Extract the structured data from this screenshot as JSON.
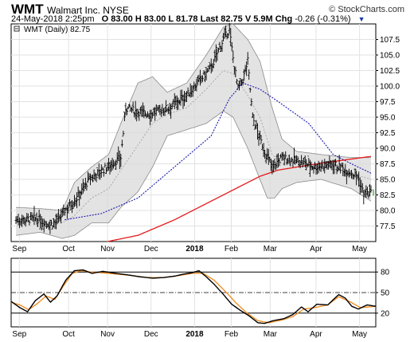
{
  "header": {
    "symbol": "WMT",
    "company": "Walmart Inc.",
    "exchange": "NYSE",
    "copyright": "© StockCharts.com",
    "date": "24-May-2018 2:25pm",
    "open": "O 83.00",
    "high": "H 83.00",
    "low": "L 81.78",
    "last": "Last 82.75",
    "volume": "V 5.9M",
    "change_label": "Chg",
    "change": "-0.26 (-0.31%)",
    "change_icon": "triangle-down-icon"
  },
  "legend": {
    "label": "WMT (Daily) 82.75"
  },
  "colors": {
    "price": "#000000",
    "sma_short": "#1a1ab0",
    "sma_long": "#e41a1a",
    "band_fill": "#d9d9d9",
    "band_line": "#8a8a8a",
    "rsi": "#000000",
    "rsi_signal": "#f08a1d",
    "last_marker": "#2aa02a"
  },
  "chart_data": [
    {
      "type": "ohlc",
      "x_months": [
        "Sep",
        "Oct",
        "Nov",
        "Dec",
        "2018",
        "Feb",
        "Mar",
        "Apr",
        "May"
      ],
      "y_ticks": [
        77.5,
        80.0,
        82.5,
        85.0,
        87.5,
        90.0,
        92.5,
        95.0,
        97.5,
        100.0,
        102.5,
        105.0,
        107.5
      ],
      "ylim": [
        75.0,
        110.0
      ],
      "last_price": 82.75,
      "price_keypoints": [
        [
          0,
          78.5
        ],
        [
          18,
          78.6
        ],
        [
          28,
          77.7
        ],
        [
          34,
          78.2
        ],
        [
          40,
          80.0
        ],
        [
          50,
          82.0
        ],
        [
          60,
          85.0
        ],
        [
          75,
          87.0
        ],
        [
          86,
          88.5
        ],
        [
          90,
          96.5
        ],
        [
          98,
          96.0
        ],
        [
          110,
          95.5
        ],
        [
          125,
          96.5
        ],
        [
          140,
          98.5
        ],
        [
          160,
          103.0
        ],
        [
          170,
          107.5
        ],
        [
          175,
          109.0
        ],
        [
          178,
          104.5
        ],
        [
          182,
          99.5
        ],
        [
          186,
          101.0
        ],
        [
          190,
          104.0
        ],
        [
          194,
          95.0
        ],
        [
          200,
          91.5
        ],
        [
          205,
          89.0
        ],
        [
          210,
          87.0
        ],
        [
          218,
          88.5
        ],
        [
          230,
          88.0
        ],
        [
          245,
          87.0
        ],
        [
          260,
          87.5
        ],
        [
          270,
          86.5
        ],
        [
          280,
          85.5
        ],
        [
          285,
          82.7
        ],
        [
          291,
          82.75
        ]
      ],
      "series": [
        {
          "name": "sma_short",
          "points": [
            [
              40,
              78.5
            ],
            [
              70,
              79.5
            ],
            [
              100,
              82.0
            ],
            [
              130,
              87.0
            ],
            [
              160,
              92.0
            ],
            [
              175,
              98.0
            ],
            [
              186,
              100.5
            ],
            [
              200,
              99.5
            ],
            [
              215,
              97.5
            ],
            [
              240,
              94.0
            ],
            [
              260,
              89.0
            ],
            [
              275,
              87.5
            ],
            [
              291,
              86.0
            ]
          ]
        },
        {
          "name": "sma_long",
          "points": [
            [
              75,
              75.0
            ],
            [
              100,
              76.0
            ],
            [
              130,
              78.5
            ],
            [
              160,
              81.5
            ],
            [
              185,
              84.0
            ],
            [
              200,
              85.5
            ],
            [
              215,
              86.5
            ],
            [
              240,
              87.3
            ],
            [
              265,
              88.0
            ],
            [
              291,
              88.7
            ]
          ]
        }
      ],
      "bands": {
        "upper": [
          [
            0,
            80.5
          ],
          [
            20,
            80.3
          ],
          [
            38,
            80.0
          ],
          [
            48,
            84.5
          ],
          [
            62,
            87.0
          ],
          [
            76,
            89.0
          ],
          [
            86,
            94.0
          ],
          [
            100,
            100.5
          ],
          [
            112,
            101.5
          ],
          [
            124,
            99.0
          ],
          [
            140,
            100.5
          ],
          [
            156,
            105.0
          ],
          [
            170,
            109.5
          ],
          [
            178,
            110.0
          ],
          [
            190,
            107.5
          ],
          [
            200,
            104.0
          ],
          [
            210,
            96.5
          ],
          [
            218,
            91.5
          ],
          [
            230,
            89.5
          ],
          [
            250,
            89.0
          ],
          [
            275,
            88.5
          ],
          [
            291,
            88.5
          ]
        ],
        "lower": [
          [
            0,
            76.0
          ],
          [
            20,
            76.5
          ],
          [
            38,
            75.5
          ],
          [
            48,
            76.0
          ],
          [
            62,
            78.0
          ],
          [
            76,
            78.0
          ],
          [
            86,
            80.5
          ],
          [
            100,
            83.0
          ],
          [
            112,
            87.0
          ],
          [
            124,
            92.0
          ],
          [
            140,
            93.0
          ],
          [
            156,
            94.0
          ],
          [
            170,
            96.0
          ],
          [
            178,
            95.0
          ],
          [
            190,
            90.0
          ],
          [
            200,
            85.0
          ],
          [
            206,
            82.0
          ],
          [
            212,
            82.0
          ],
          [
            218,
            83.5
          ],
          [
            230,
            84.5
          ],
          [
            250,
            85.0
          ],
          [
            275,
            83.5
          ],
          [
            291,
            81.5
          ]
        ],
        "middle": [
          [
            0,
            78.2
          ],
          [
            20,
            78.3
          ],
          [
            38,
            78.0
          ],
          [
            48,
            79.2
          ],
          [
            62,
            82.0
          ],
          [
            76,
            83.5
          ],
          [
            86,
            86.5
          ],
          [
            100,
            90.5
          ],
          [
            112,
            94.0
          ],
          [
            124,
            95.5
          ],
          [
            140,
            96.5
          ],
          [
            156,
            99.5
          ],
          [
            170,
            102.5
          ],
          [
            178,
            102.0
          ],
          [
            190,
            98.5
          ],
          [
            200,
            95.0
          ],
          [
            210,
            89.0
          ],
          [
            218,
            87.5
          ],
          [
            230,
            87.0
          ],
          [
            250,
            87.0
          ],
          [
            275,
            86.0
          ],
          [
            291,
            85.0
          ]
        ]
      }
    },
    {
      "type": "line",
      "title": "",
      "y_ticks": [
        20,
        50,
        80
      ],
      "ylim": [
        0,
        100
      ],
      "series": [
        {
          "name": "rsi",
          "points": [
            [
              0,
              37.0
            ],
            [
              8,
              28.0
            ],
            [
              15,
              22.0
            ],
            [
              22,
              38.0
            ],
            [
              30,
              48.0
            ],
            [
              36,
              36.0
            ],
            [
              42,
              45.0
            ],
            [
              50,
              68.0
            ],
            [
              58,
              82.0
            ],
            [
              66,
              83.0
            ],
            [
              74,
              78.0
            ],
            [
              84,
              81.0
            ],
            [
              96,
              78.0
            ],
            [
              106,
              76.0
            ],
            [
              118,
              73.0
            ],
            [
              130,
              71.0
            ],
            [
              140,
              72.0
            ],
            [
              150,
              74.0
            ],
            [
              158,
              77.0
            ],
            [
              166,
              79.0
            ],
            [
              172,
              82.0
            ],
            [
              178,
              74.0
            ],
            [
              186,
              62.0
            ],
            [
              194,
              48.0
            ],
            [
              202,
              33.0
            ],
            [
              210,
              24.0
            ],
            [
              218,
              16.0
            ],
            [
              226,
              6.0
            ],
            [
              232,
              5.0
            ],
            [
              240,
              9.0
            ],
            [
              250,
              12.0
            ],
            [
              258,
              18.0
            ],
            [
              266,
              29.0
            ],
            [
              272,
              22.0
            ],
            [
              280,
              33.0
            ],
            [
              290,
              32.0
            ],
            [
              300,
              47.0
            ],
            [
              306,
              42.0
            ],
            [
              312,
              30.0
            ],
            [
              318,
              26.0
            ],
            [
              326,
              32.0
            ],
            [
              334,
              30.0
            ]
          ]
        },
        {
          "name": "rsi_signal",
          "points": [
            [
              0,
              36.0
            ],
            [
              8,
              32.0
            ],
            [
              16,
              25.0
            ],
            [
              24,
              34.0
            ],
            [
              32,
              45.0
            ],
            [
              40,
              40.0
            ],
            [
              48,
              60.0
            ],
            [
              56,
              78.0
            ],
            [
              64,
              82.0
            ],
            [
              72,
              80.0
            ],
            [
              82,
              79.0
            ],
            [
              96,
              77.0
            ],
            [
              110,
              75.0
            ],
            [
              124,
              72.0
            ],
            [
              140,
              72.0
            ],
            [
              154,
              75.0
            ],
            [
              166,
              78.0
            ],
            [
              176,
              78.0
            ],
            [
              186,
              68.0
            ],
            [
              196,
              52.0
            ],
            [
              206,
              35.0
            ],
            [
              216,
              20.0
            ],
            [
              226,
              9.0
            ],
            [
              236,
              6.0
            ],
            [
              248,
              10.0
            ],
            [
              258,
              15.0
            ],
            [
              268,
              26.0
            ],
            [
              278,
              28.0
            ],
            [
              290,
              32.0
            ],
            [
              300,
              44.0
            ],
            [
              310,
              37.0
            ],
            [
              320,
              28.0
            ],
            [
              334,
              30.0
            ]
          ]
        }
      ]
    }
  ]
}
